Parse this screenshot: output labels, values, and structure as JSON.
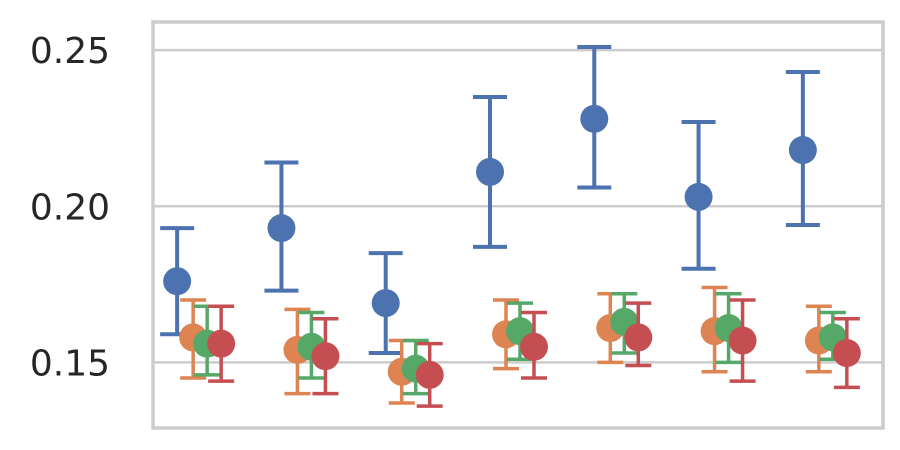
{
  "chart_data": {
    "type": "scatter",
    "subtype": "point-with-error-bars",
    "title": "",
    "xlabel": "",
    "ylabel": "",
    "ylim": [
      0.129,
      0.259
    ],
    "yticks": [
      0.15,
      0.2,
      0.25
    ],
    "ytick_labels": [
      "0.15",
      "0.20",
      "0.25"
    ],
    "grid": "horizontal",
    "legend": "none",
    "groups": 7,
    "series": [
      {
        "color": "#4c72b0",
        "values": [
          0.176,
          0.193,
          0.169,
          0.211,
          0.228,
          0.203,
          0.218
        ],
        "lower": [
          0.159,
          0.173,
          0.153,
          0.187,
          0.206,
          0.18,
          0.194
        ],
        "upper": [
          0.193,
          0.214,
          0.185,
          0.235,
          0.251,
          0.227,
          0.243
        ]
      },
      {
        "color": "#dd8452",
        "values": [
          0.158,
          0.154,
          0.147,
          0.159,
          0.161,
          0.16,
          0.157
        ],
        "lower": [
          0.145,
          0.14,
          0.137,
          0.148,
          0.15,
          0.147,
          0.147
        ],
        "upper": [
          0.17,
          0.167,
          0.157,
          0.17,
          0.172,
          0.174,
          0.168
        ]
      },
      {
        "color": "#55a868",
        "values": [
          0.156,
          0.155,
          0.148,
          0.16,
          0.163,
          0.161,
          0.158
        ],
        "lower": [
          0.146,
          0.145,
          0.14,
          0.151,
          0.153,
          0.15,
          0.151
        ],
        "upper": [
          0.168,
          0.166,
          0.157,
          0.169,
          0.172,
          0.172,
          0.166
        ]
      },
      {
        "color": "#c44e52",
        "values": [
          0.156,
          0.152,
          0.146,
          0.155,
          0.158,
          0.157,
          0.153
        ],
        "lower": [
          0.144,
          0.14,
          0.136,
          0.145,
          0.149,
          0.144,
          0.142
        ],
        "upper": [
          0.168,
          0.164,
          0.156,
          0.166,
          0.169,
          0.17,
          0.164
        ]
      }
    ]
  }
}
